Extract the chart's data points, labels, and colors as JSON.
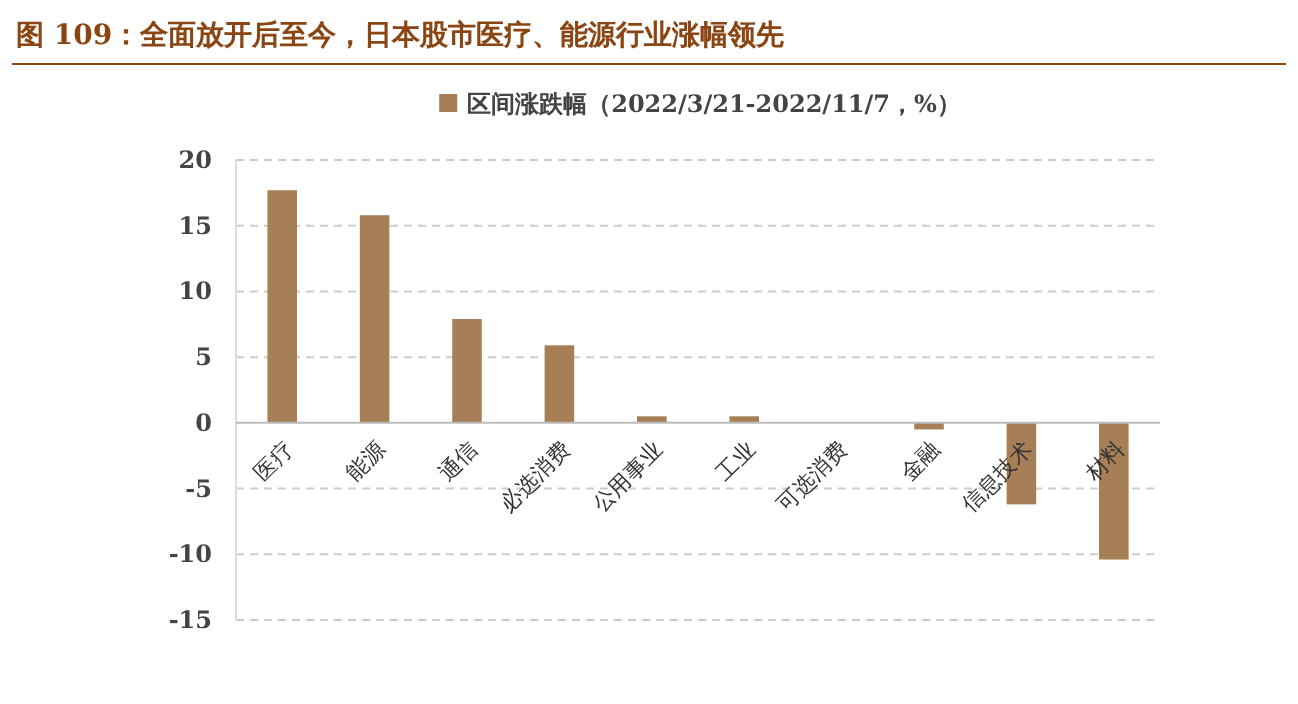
{
  "chart_data": {
    "type": "bar",
    "title": "图 109：全面放开后至今，日本股市医疗、能源行业涨幅领先",
    "categories": [
      "医疗",
      "能源",
      "通信",
      "必选消费",
      "公用事业",
      "工业",
      "可选消费",
      "金融",
      "信息技术",
      "材料"
    ],
    "series": [
      {
        "name": "区间涨跌幅（2022/3/21-2022/11/7，%）",
        "color": "#a67f56",
        "values": [
          17.7,
          15.8,
          7.9,
          5.9,
          0.5,
          0.5,
          0,
          -0.5,
          -6.2,
          -10.4
        ]
      }
    ],
    "ylim": [
      -15,
      20
    ],
    "yticks": [
      -15,
      -10,
      -5,
      0,
      5,
      10,
      15,
      20
    ],
    "grid": "y",
    "legend": "top"
  }
}
